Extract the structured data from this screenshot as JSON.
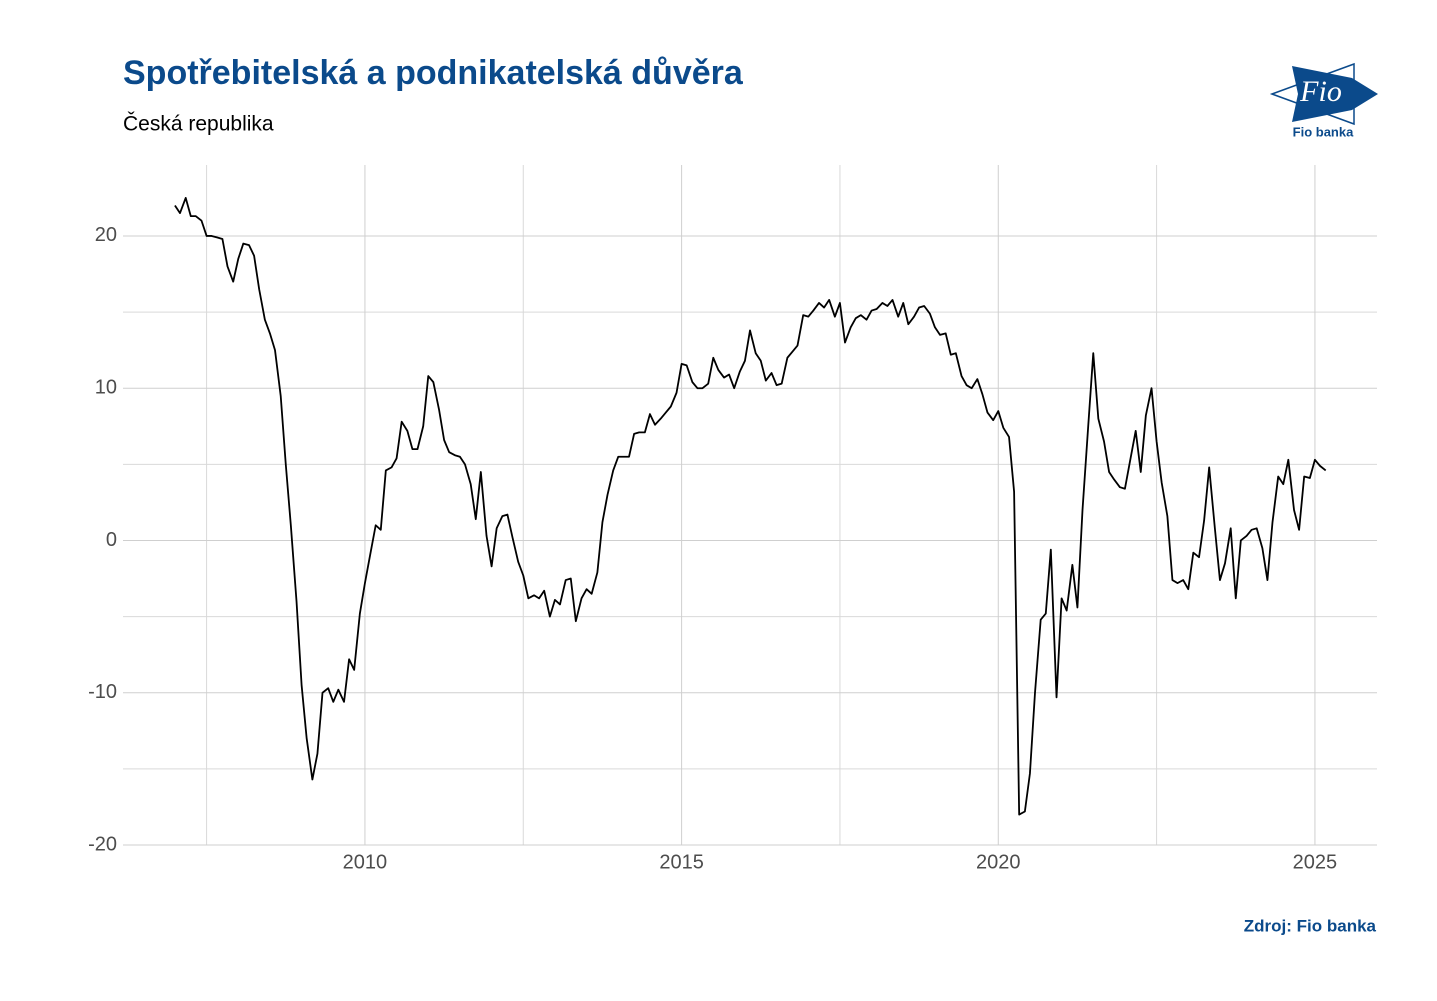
{
  "chart_data": {
    "type": "line",
    "title": "Spotřebitelská a podnikatelská důvěra",
    "subtitle": "Česká republika",
    "source": "Zdroj: Fio banka",
    "logo": {
      "mark": "Fio",
      "name": "Fio banka"
    },
    "xlim": [
      2006.18,
      2025.98
    ],
    "ylim": [
      -20,
      24.66
    ],
    "xticks": [
      2010,
      2015,
      2020,
      2025
    ],
    "yticks": [
      -20,
      -10,
      0,
      10,
      20
    ],
    "xminor": [
      2007.5,
      2012.5,
      2017.5,
      2022.5
    ],
    "yminor": [
      -15,
      -5,
      5,
      15
    ],
    "grid": true,
    "x": [
      2007.0,
      2007.08,
      2007.17,
      2007.25,
      2007.33,
      2007.42,
      2007.5,
      2007.58,
      2007.67,
      2007.75,
      2007.83,
      2007.92,
      2008.0,
      2008.08,
      2008.17,
      2008.25,
      2008.33,
      2008.42,
      2008.5,
      2008.58,
      2008.67,
      2008.75,
      2008.83,
      2008.92,
      2009.0,
      2009.08,
      2009.17,
      2009.25,
      2009.33,
      2009.42,
      2009.5,
      2009.58,
      2009.67,
      2009.75,
      2009.83,
      2009.92,
      2010.0,
      2010.08,
      2010.17,
      2010.25,
      2010.33,
      2010.42,
      2010.5,
      2010.58,
      2010.67,
      2010.75,
      2010.83,
      2010.92,
      2011.0,
      2011.08,
      2011.17,
      2011.25,
      2011.33,
      2011.42,
      2011.5,
      2011.58,
      2011.67,
      2011.75,
      2011.83,
      2011.92,
      2012.0,
      2012.08,
      2012.17,
      2012.25,
      2012.33,
      2012.42,
      2012.5,
      2012.58,
      2012.67,
      2012.75,
      2012.83,
      2012.92,
      2013.0,
      2013.08,
      2013.17,
      2013.25,
      2013.33,
      2013.42,
      2013.5,
      2013.58,
      2013.67,
      2013.75,
      2013.83,
      2013.92,
      2014.0,
      2014.08,
      2014.17,
      2014.25,
      2014.33,
      2014.42,
      2014.5,
      2014.58,
      2014.67,
      2014.75,
      2014.83,
      2014.92,
      2015.0,
      2015.08,
      2015.17,
      2015.25,
      2015.33,
      2015.42,
      2015.5,
      2015.58,
      2015.67,
      2015.75,
      2015.83,
      2015.92,
      2016.0,
      2016.08,
      2016.17,
      2016.25,
      2016.33,
      2016.42,
      2016.5,
      2016.58,
      2016.67,
      2016.75,
      2016.83,
      2016.92,
      2017.0,
      2017.08,
      2017.17,
      2017.25,
      2017.33,
      2017.42,
      2017.5,
      2017.58,
      2017.67,
      2017.75,
      2017.83,
      2017.92,
      2018.0,
      2018.08,
      2018.17,
      2018.25,
      2018.33,
      2018.42,
      2018.5,
      2018.58,
      2018.67,
      2018.75,
      2018.83,
      2018.92,
      2019.0,
      2019.08,
      2019.17,
      2019.25,
      2019.33,
      2019.42,
      2019.5,
      2019.58,
      2019.67,
      2019.75,
      2019.83,
      2019.92,
      2020.0,
      2020.08,
      2020.17,
      2020.25,
      2020.33,
      2020.42,
      2020.5,
      2020.58,
      2020.67,
      2020.75,
      2020.83,
      2020.92,
      2021.0,
      2021.08,
      2021.17,
      2021.25,
      2021.33,
      2021.42,
      2021.5,
      2021.58,
      2021.67,
      2021.75,
      2021.83,
      2021.92,
      2022.0,
      2022.08,
      2022.17,
      2022.25,
      2022.33,
      2022.42,
      2022.5,
      2022.58,
      2022.67,
      2022.75,
      2022.83,
      2022.92,
      2023.0,
      2023.08,
      2023.17,
      2023.25,
      2023.33,
      2023.42,
      2023.5,
      2023.58,
      2023.67,
      2023.75,
      2023.83,
      2023.92,
      2024.0,
      2024.08,
      2024.17,
      2024.25,
      2024.33,
      2024.42,
      2024.5,
      2024.58,
      2024.67,
      2024.75,
      2024.83,
      2024.92,
      2025.0,
      2025.08,
      2025.17
    ],
    "series": [
      {
        "color": "#000000",
        "values": [
          22,
          21.5,
          22.5,
          21.3,
          21.3,
          21,
          20,
          20,
          19.9,
          19.8,
          18,
          17,
          18.5,
          19.5,
          19.4,
          18.7,
          16.5,
          14.5,
          13.6,
          12.5,
          9.5,
          5,
          1,
          -4,
          -9.5,
          -13,
          -15.7,
          -14,
          -10,
          -9.7,
          -10.6,
          -9.8,
          -10.6,
          -7.8,
          -8.5,
          -4.8,
          -2.8,
          -1,
          1,
          0.7,
          4.6,
          4.8,
          5.4,
          7.8,
          7.2,
          6,
          6,
          7.5,
          10.8,
          10.4,
          8.6,
          6.6,
          5.8,
          5.6,
          5.5,
          5,
          3.7,
          1.4,
          4.5,
          0.3,
          -1.7,
          0.8,
          1.6,
          1.7,
          0.2,
          -1.4,
          -2.3,
          -3.8,
          -3.6,
          -3.8,
          -3.3,
          -5,
          -3.9,
          -4.2,
          -2.6,
          -2.5,
          -5.3,
          -3.8,
          -3.2,
          -3.5,
          -2.1,
          1.2,
          3,
          4.6,
          5.5,
          5.5,
          5.5,
          7,
          7.1,
          7.1,
          8.3,
          7.6,
          8,
          8.4,
          8.8,
          9.7,
          11.6,
          11.5,
          10.4,
          10,
          10,
          10.3,
          12,
          11.2,
          10.7,
          10.9,
          10,
          11.1,
          11.8,
          13.8,
          12.3,
          11.8,
          10.5,
          11,
          10.2,
          10.3,
          12,
          12.4,
          12.8,
          14.8,
          14.7,
          15.1,
          15.6,
          15.3,
          15.8,
          14.7,
          15.6,
          13,
          14,
          14.6,
          14.8,
          14.5,
          15.1,
          15.2,
          15.6,
          15.4,
          15.8,
          14.7,
          15.6,
          14.2,
          14.7,
          15.3,
          15.4,
          14.9,
          14,
          13.5,
          13.6,
          12.2,
          12.3,
          10.8,
          10.2,
          10,
          10.6,
          9.6,
          8.4,
          7.9,
          8.5,
          7.4,
          6.8,
          3.2,
          -18,
          -17.8,
          -15.3,
          -10,
          -5.2,
          -4.8,
          -0.6,
          -10.3,
          -3.8,
          -4.6,
          -1.6,
          -4.4,
          2,
          7.5,
          12.3,
          8,
          6.5,
          4.5,
          4,
          3.5,
          3.4,
          5.2,
          7.2,
          4.5,
          8.2,
          10,
          6.5,
          3.8,
          1.6,
          -2.6,
          -2.8,
          -2.6,
          -3.2,
          -0.8,
          -1.1,
          1.3,
          4.8,
          0.8,
          -2.6,
          -1.5,
          0.8,
          -3.8,
          0,
          0.3,
          0.7,
          0.8,
          -0.5,
          -2.6,
          1.2,
          4.2,
          3.7,
          5.3,
          2,
          0.7,
          4.2,
          4.1,
          5.3,
          4.9,
          4.6
        ]
      }
    ]
  }
}
